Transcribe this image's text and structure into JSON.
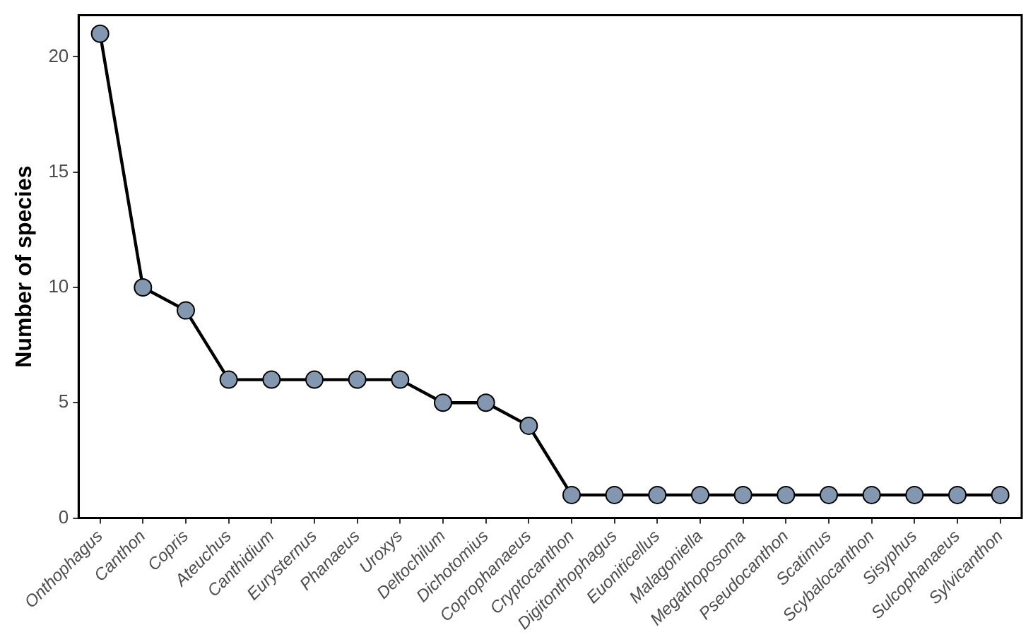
{
  "chart_data": {
    "type": "line",
    "ylabel": "Number of species",
    "categories": [
      "Onthophagus",
      "Canthon",
      "Copris",
      "Ateuchus",
      "Canthidium",
      "Eurysternus",
      "Phanaeus",
      "Uroxys",
      "Deltochilum",
      "Dichotomius",
      "Coprophanaeus",
      "Cryptocanthon",
      "Digitonthophagus",
      "Euoniticellus",
      "Malagoniella",
      "Megathoposoma",
      "Pseudocanthon",
      "Scatimus",
      "Scybalocanthon",
      "Sisyphus",
      "Sulcophanaeus",
      "Sylvicanthon"
    ],
    "series": [
      {
        "color": "#8497b0",
        "values": [
          21,
          10,
          9,
          6,
          6,
          6,
          6,
          6,
          5,
          5,
          4,
          1,
          1,
          1,
          1,
          1,
          1,
          1,
          1,
          1,
          1,
          1
        ]
      }
    ],
    "ylim": [
      0,
      21.8
    ],
    "yticks": [
      0,
      5,
      10,
      15,
      20
    ],
    "grid": false,
    "legend": false,
    "marker": "circle",
    "line_style": "solid"
  }
}
